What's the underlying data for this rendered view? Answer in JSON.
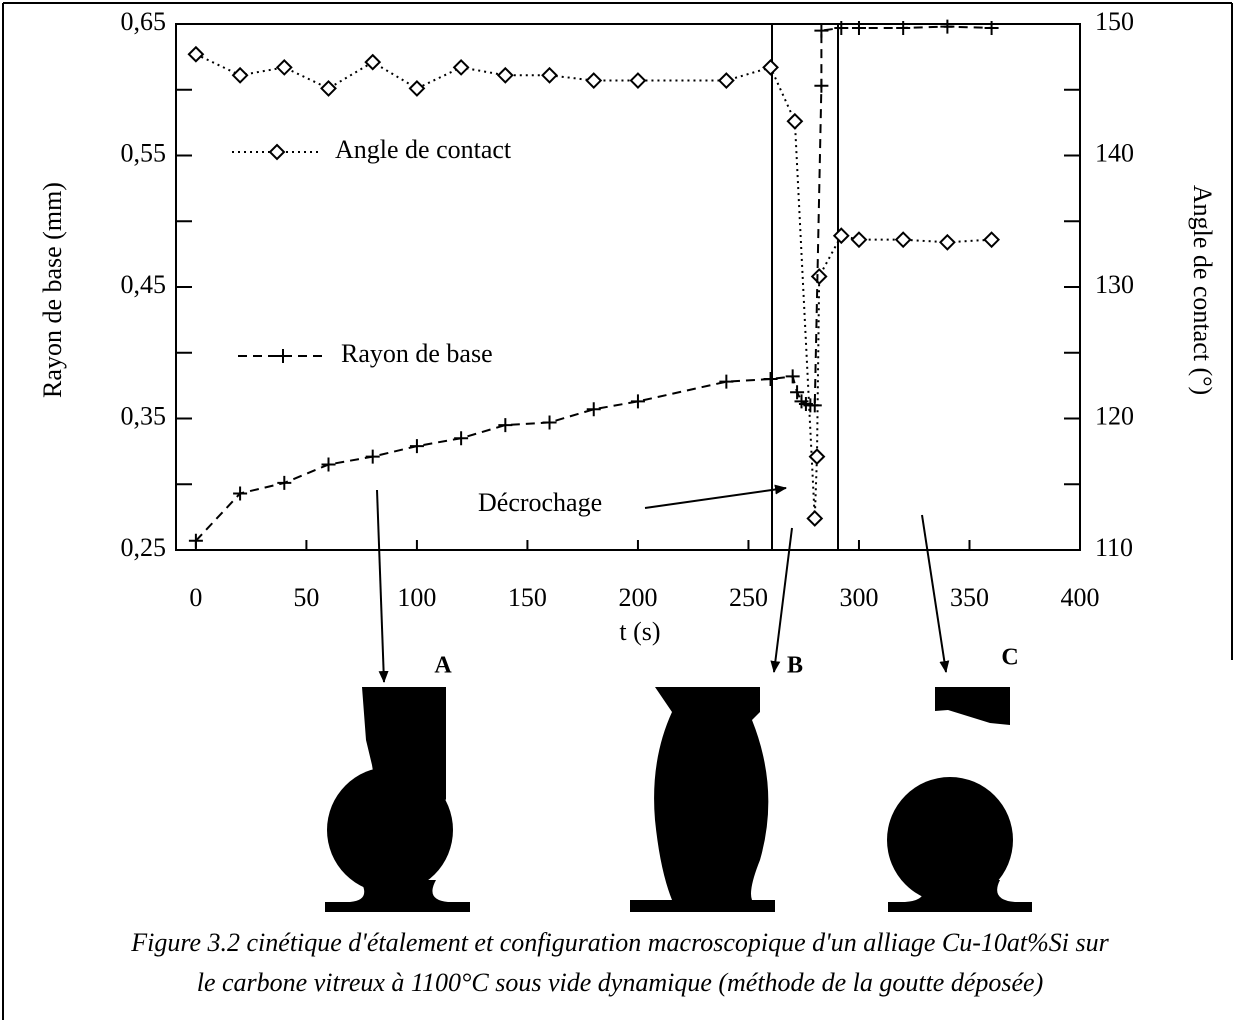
{
  "chart_data": {
    "type": "line",
    "xlabel": "t (s)",
    "ylabel": "Rayon de base (mm)",
    "y2label": "Angle de contact (°)",
    "xlim": [
      -9,
      400
    ],
    "xticks": [
      0,
      50,
      100,
      150,
      200,
      250,
      300,
      350,
      400
    ],
    "ylim": [
      0.25,
      0.65
    ],
    "yticks": [
      {
        "value": 0.25,
        "label": "0,25"
      },
      {
        "value": 0.35,
        "label": "0,35"
      },
      {
        "value": 0.45,
        "label": "0,45"
      },
      {
        "value": 0.55,
        "label": "0,55"
      },
      {
        "value": 0.65,
        "label": "0,65"
      }
    ],
    "yminor_ticks": [
      0.3,
      0.4,
      0.5,
      0.6
    ],
    "y2lim": [
      110,
      150
    ],
    "y2ticks": [
      110,
      120,
      130,
      140,
      150
    ],
    "y2minor_ticks": [
      115,
      125,
      135,
      145
    ],
    "annotation": "Décrochage",
    "series": [
      {
        "name": "Angle de contact",
        "color": "#000000",
        "axis": "y2",
        "dash": "dotted",
        "marker": "diamond",
        "x": [
          0,
          20,
          40,
          60,
          80,
          100,
          120,
          140,
          160,
          180,
          200,
          240,
          260,
          271,
          280,
          281,
          282,
          292,
          300,
          320,
          340,
          360
        ],
        "values": [
          147.7,
          146.1,
          146.7,
          145.1,
          147.1,
          145.1,
          146.7,
          146.1,
          146.1,
          145.7,
          145.7,
          145.7,
          146.7,
          142.6,
          112.4,
          117.1,
          130.8,
          133.9,
          133.6,
          133.6,
          133.4,
          133.6
        ]
      },
      {
        "name": "Rayon de base",
        "color": "#000000",
        "axis": "y",
        "dash": "dashed",
        "marker": "plus",
        "x": [
          0,
          20,
          40,
          60,
          80,
          100,
          120,
          140,
          160,
          180,
          200,
          240,
          260,
          270,
          272,
          274,
          276,
          278,
          280,
          283,
          283,
          292,
          300,
          320,
          340,
          360
        ],
        "values": [
          0.257,
          0.293,
          0.301,
          0.315,
          0.321,
          0.329,
          0.335,
          0.345,
          0.347,
          0.357,
          0.363,
          0.378,
          0.38,
          0.382,
          0.37,
          0.363,
          0.361,
          0.36,
          0.36,
          0.603,
          0.645,
          0.647,
          0.647,
          0.647,
          0.648,
          0.647
        ]
      }
    ]
  },
  "figure_labels": [
    "A",
    "B",
    "C"
  ],
  "caption": [
    "Figure 3.2 cinétique d'étalement et configuration macroscopique d'un alliage Cu-10at%Si sur",
    "le carbone vitreux à 1100°C sous vide dynamique (méthode de la goutte déposée)"
  ]
}
